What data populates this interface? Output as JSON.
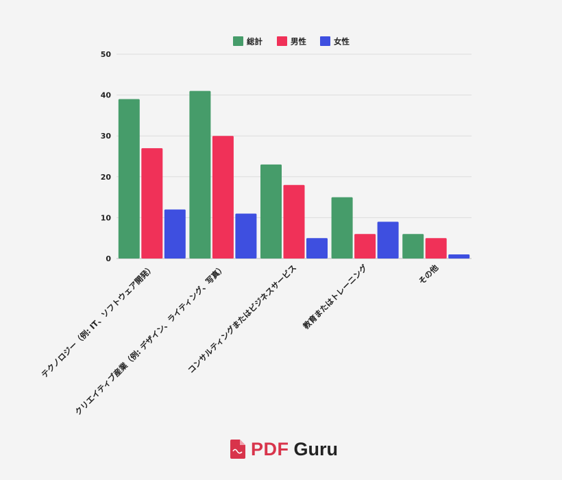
{
  "chart_data": {
    "type": "bar",
    "categories": [
      "テクノロジー（例: IT、ソフトウェア開発）",
      "クリエイティブ産業（例: デザイン、ライティング、写真）",
      "コンサルティングまたはビジネスサービス",
      "教育またはトレーニング",
      "その他"
    ],
    "series": [
      {
        "name": "総計",
        "values": [
          39,
          41,
          23,
          15,
          6
        ],
        "color": "#469c6a"
      },
      {
        "name": "男性",
        "values": [
          27,
          30,
          18,
          6,
          5
        ],
        "color": "#f03158"
      },
      {
        "name": "女性",
        "values": [
          12,
          11,
          5,
          9,
          1
        ],
        "color": "#3e4fe0"
      }
    ],
    "ylim": [
      0,
      50
    ],
    "yticks": [
      0,
      10,
      20,
      30,
      40,
      50
    ],
    "grid": true,
    "legend_position": "top-center",
    "xlabel": "",
    "ylabel": ""
  },
  "brand": {
    "name_part1": "PDF",
    "name_part2": "Guru",
    "icon": "pdf-file-icon",
    "accent_color": "#d8344b"
  }
}
